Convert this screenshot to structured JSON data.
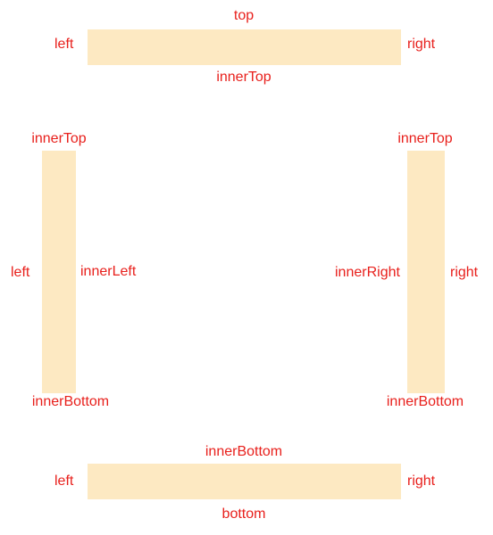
{
  "colors": {
    "bar_fill": "#fde9c2",
    "label_text": "#e8201c",
    "background": "#ffffff"
  },
  "top_bar": {
    "outer": "top",
    "left": "left",
    "right": "right",
    "inner": "innerTop"
  },
  "left_bar": {
    "top": "innerTop",
    "outer": "left",
    "inner": "innerLeft",
    "bottom": "innerBottom"
  },
  "right_bar": {
    "top": "innerTop",
    "inner": "innerRight",
    "outer": "right",
    "bottom": "innerBottom"
  },
  "bottom_bar": {
    "inner": "innerBottom",
    "left": "left",
    "right": "right",
    "outer": "bottom"
  }
}
